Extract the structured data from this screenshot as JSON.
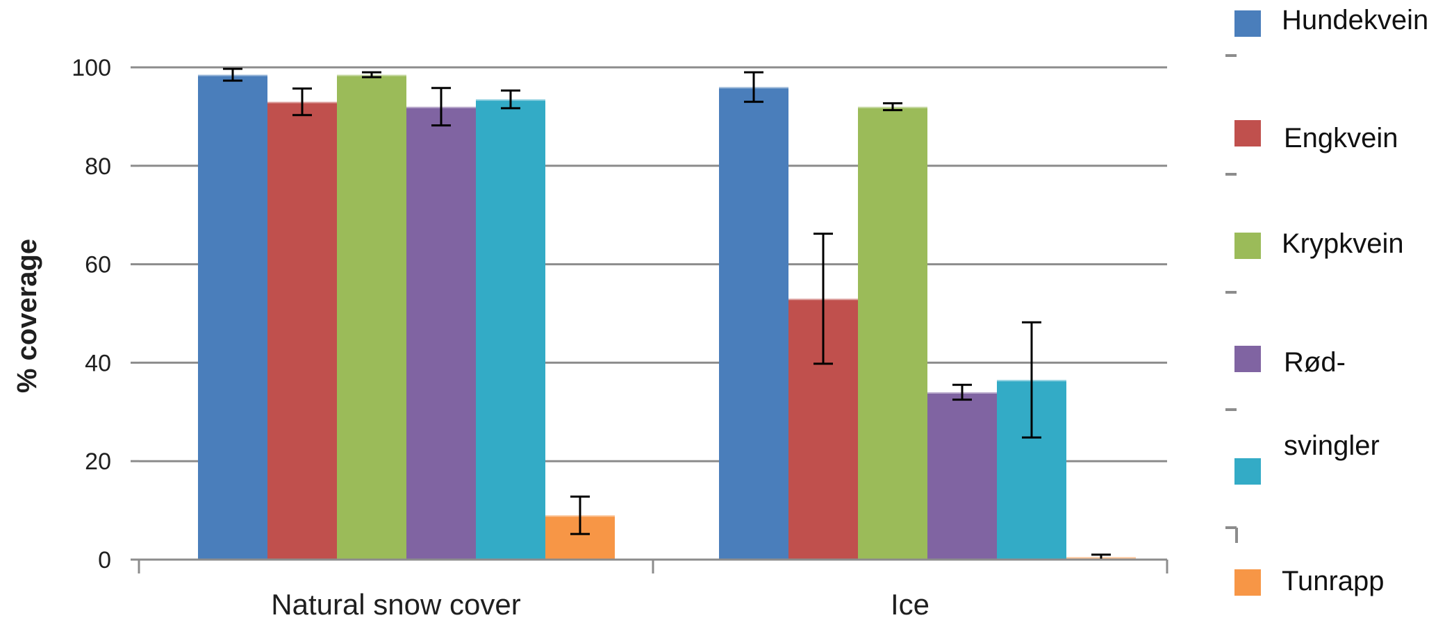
{
  "chart_data": {
    "type": "bar",
    "categories": [
      "Natural snow cover",
      "Ice"
    ],
    "ylabel": "% coverage",
    "xlabel": "",
    "title": "",
    "ylim": [
      0,
      100
    ],
    "yticks": [
      0,
      20,
      40,
      60,
      80,
      100
    ],
    "grid": true,
    "legend_position": "right",
    "legend_labels": [
      "Hundekvein",
      "Engkvein",
      "Krypkvein",
      "Rød-",
      "svingler",
      "Tunrapp"
    ],
    "series": [
      {
        "name": "Hundekvein",
        "color": "#4a7ebb",
        "values": [
          98.5,
          96
        ],
        "errors": [
          1.2,
          3
        ]
      },
      {
        "name": "Engkvein",
        "color": "#c0504d",
        "values": [
          93,
          53
        ],
        "errors": [
          2.7,
          13.2
        ]
      },
      {
        "name": "Krypkvein",
        "color": "#9bbb59",
        "values": [
          98.5,
          92
        ],
        "errors": [
          0.5,
          0.7
        ]
      },
      {
        "name": "Rød-svingler",
        "color": "#8064a2",
        "values": [
          92,
          34
        ],
        "errors": [
          3.8,
          1.5
        ]
      },
      {
        "name": "",
        "color": "#33abc6",
        "values": [
          93.5,
          36.5
        ],
        "errors": [
          1.8,
          11.7
        ]
      },
      {
        "name": "Tunrapp",
        "color": "#f79646",
        "values": [
          9,
          0.5
        ],
        "errors": [
          3.8,
          0.5
        ]
      }
    ]
  }
}
